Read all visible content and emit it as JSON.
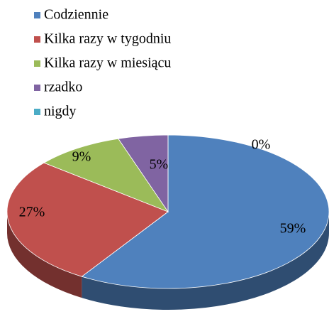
{
  "chart_data": {
    "type": "pie",
    "categories": [
      "Codziennie",
      "Kilka razy w tygodniu",
      "Kilka razy w miesiącu",
      "rzadko",
      "nigdy"
    ],
    "values": [
      59,
      27,
      9,
      5,
      0
    ],
    "value_labels": [
      "59%",
      "27%",
      "9%",
      "5%",
      "0%"
    ],
    "colors": [
      "#4f81bd",
      "#c0504d",
      "#9bbb59",
      "#8064a2",
      "#4bacc6"
    ],
    "legend": "top-left"
  }
}
